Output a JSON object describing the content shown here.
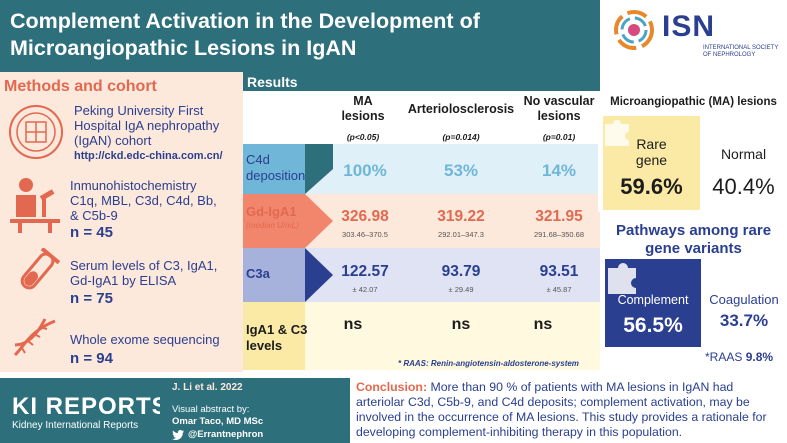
{
  "header": {
    "title_line1": "Complement Activation in the Development of",
    "title_line2": "Microangiopathic Lesions in IgAN",
    "isn": "ISN",
    "isn_sub": "INTERNATIONAL SOCIETY OF NEPHROLOGY"
  },
  "methods": {
    "title": "Methods and cohort",
    "items": [
      {
        "text1": "Peking University First",
        "text2": "Hospital IgA nephropathy",
        "text3": "(IgAN) cohort",
        "link": "http://ckd.edc-china.com.cn/"
      },
      {
        "text1": "Inmunohistochemistry",
        "text2": "C1q, MBL, C3d, C4d, Bb,",
        "text3": "& C5b-9",
        "n": "n = 45"
      },
      {
        "text1": "Serum levels of C3, IgA1,",
        "text2": "Gd-IgA1 by ELISA",
        "n": "n = 75"
      },
      {
        "text1": "Whole exome sequencing",
        "n": "n = 94"
      }
    ]
  },
  "results": {
    "title": "Results",
    "columns": [
      {
        "head1": "MA",
        "head2": "lesions",
        "p": "(p<0.05)"
      },
      {
        "head1": "Arteriolosclerosis",
        "head2": "",
        "p": "(p=0.014)"
      },
      {
        "head1": "No vascular",
        "head2": "lesions",
        "p": "(p=0.01)"
      }
    ],
    "rows": [
      {
        "label1": "C4d",
        "label2": "deposition",
        "values": [
          "100%",
          "53%",
          "14%"
        ],
        "subs": [
          "",
          "",
          ""
        ]
      },
      {
        "label1": "Gd-IgA1",
        "label2": "(median U/mL)",
        "values": [
          "326.98",
          "319.22",
          "321.95"
        ],
        "subs": [
          "303.46–370.5",
          "292.01–347.3",
          "291.68–350.68"
        ]
      },
      {
        "label1": "C3a",
        "label2": "",
        "values": [
          "122.57",
          "93.79",
          "93.51"
        ],
        "subs": [
          "± 42.07",
          "± 29.49",
          "± 45.87"
        ]
      },
      {
        "label1": "IgA1 & C3",
        "label2": "levels",
        "values": [
          "ns",
          "ns",
          "ns"
        ],
        "subs": [
          "",
          "",
          ""
        ]
      }
    ],
    "footnote": "* RAAS: Renin-angiotensin-aldosterone-system"
  },
  "ma_panel": {
    "title": "Microangiopathic (MA) lesions",
    "rare_label1": "Rare",
    "rare_label2": "gene",
    "rare_value": "59.6%",
    "normal_label": "Normal",
    "normal_value": "40.4%"
  },
  "pathways": {
    "title1": "Pathways among rare",
    "title2": "gene variants",
    "complement_label": "Complement",
    "complement_value": "56.5%",
    "coag_label": "Coagulation",
    "coag_value": "33.7%",
    "raas_label": "*RAAS",
    "raas_value": "9.8%"
  },
  "footer": {
    "citation": "J. Li et al. 2022",
    "journal": "KI REPORTS",
    "journal_sub": "Kidney International Reports",
    "va_by": "Visual abstract by:",
    "author": "Omar Taco, MD MSc",
    "twitter": "@Errantnephron",
    "conclusion_label": "Conclusion:",
    "conclusion_text": "More than 90 % of patients with MA lesions in IgAN had arteriolar C3d, C5b-9, and C4d deposits; complement activation, may be involved in the occurrence of MA lesions. This study provides a rationale for developing complement-inhibiting therapy in this population."
  },
  "colors": {
    "teal": "#2e6f7c",
    "navy": "#2a3f8f",
    "salmon": "#e2694f",
    "peach": "#fde8dc",
    "blue_cell": "#6fb6d8",
    "orange_cell": "#f1866c",
    "yellow": "#fbeaa6"
  }
}
